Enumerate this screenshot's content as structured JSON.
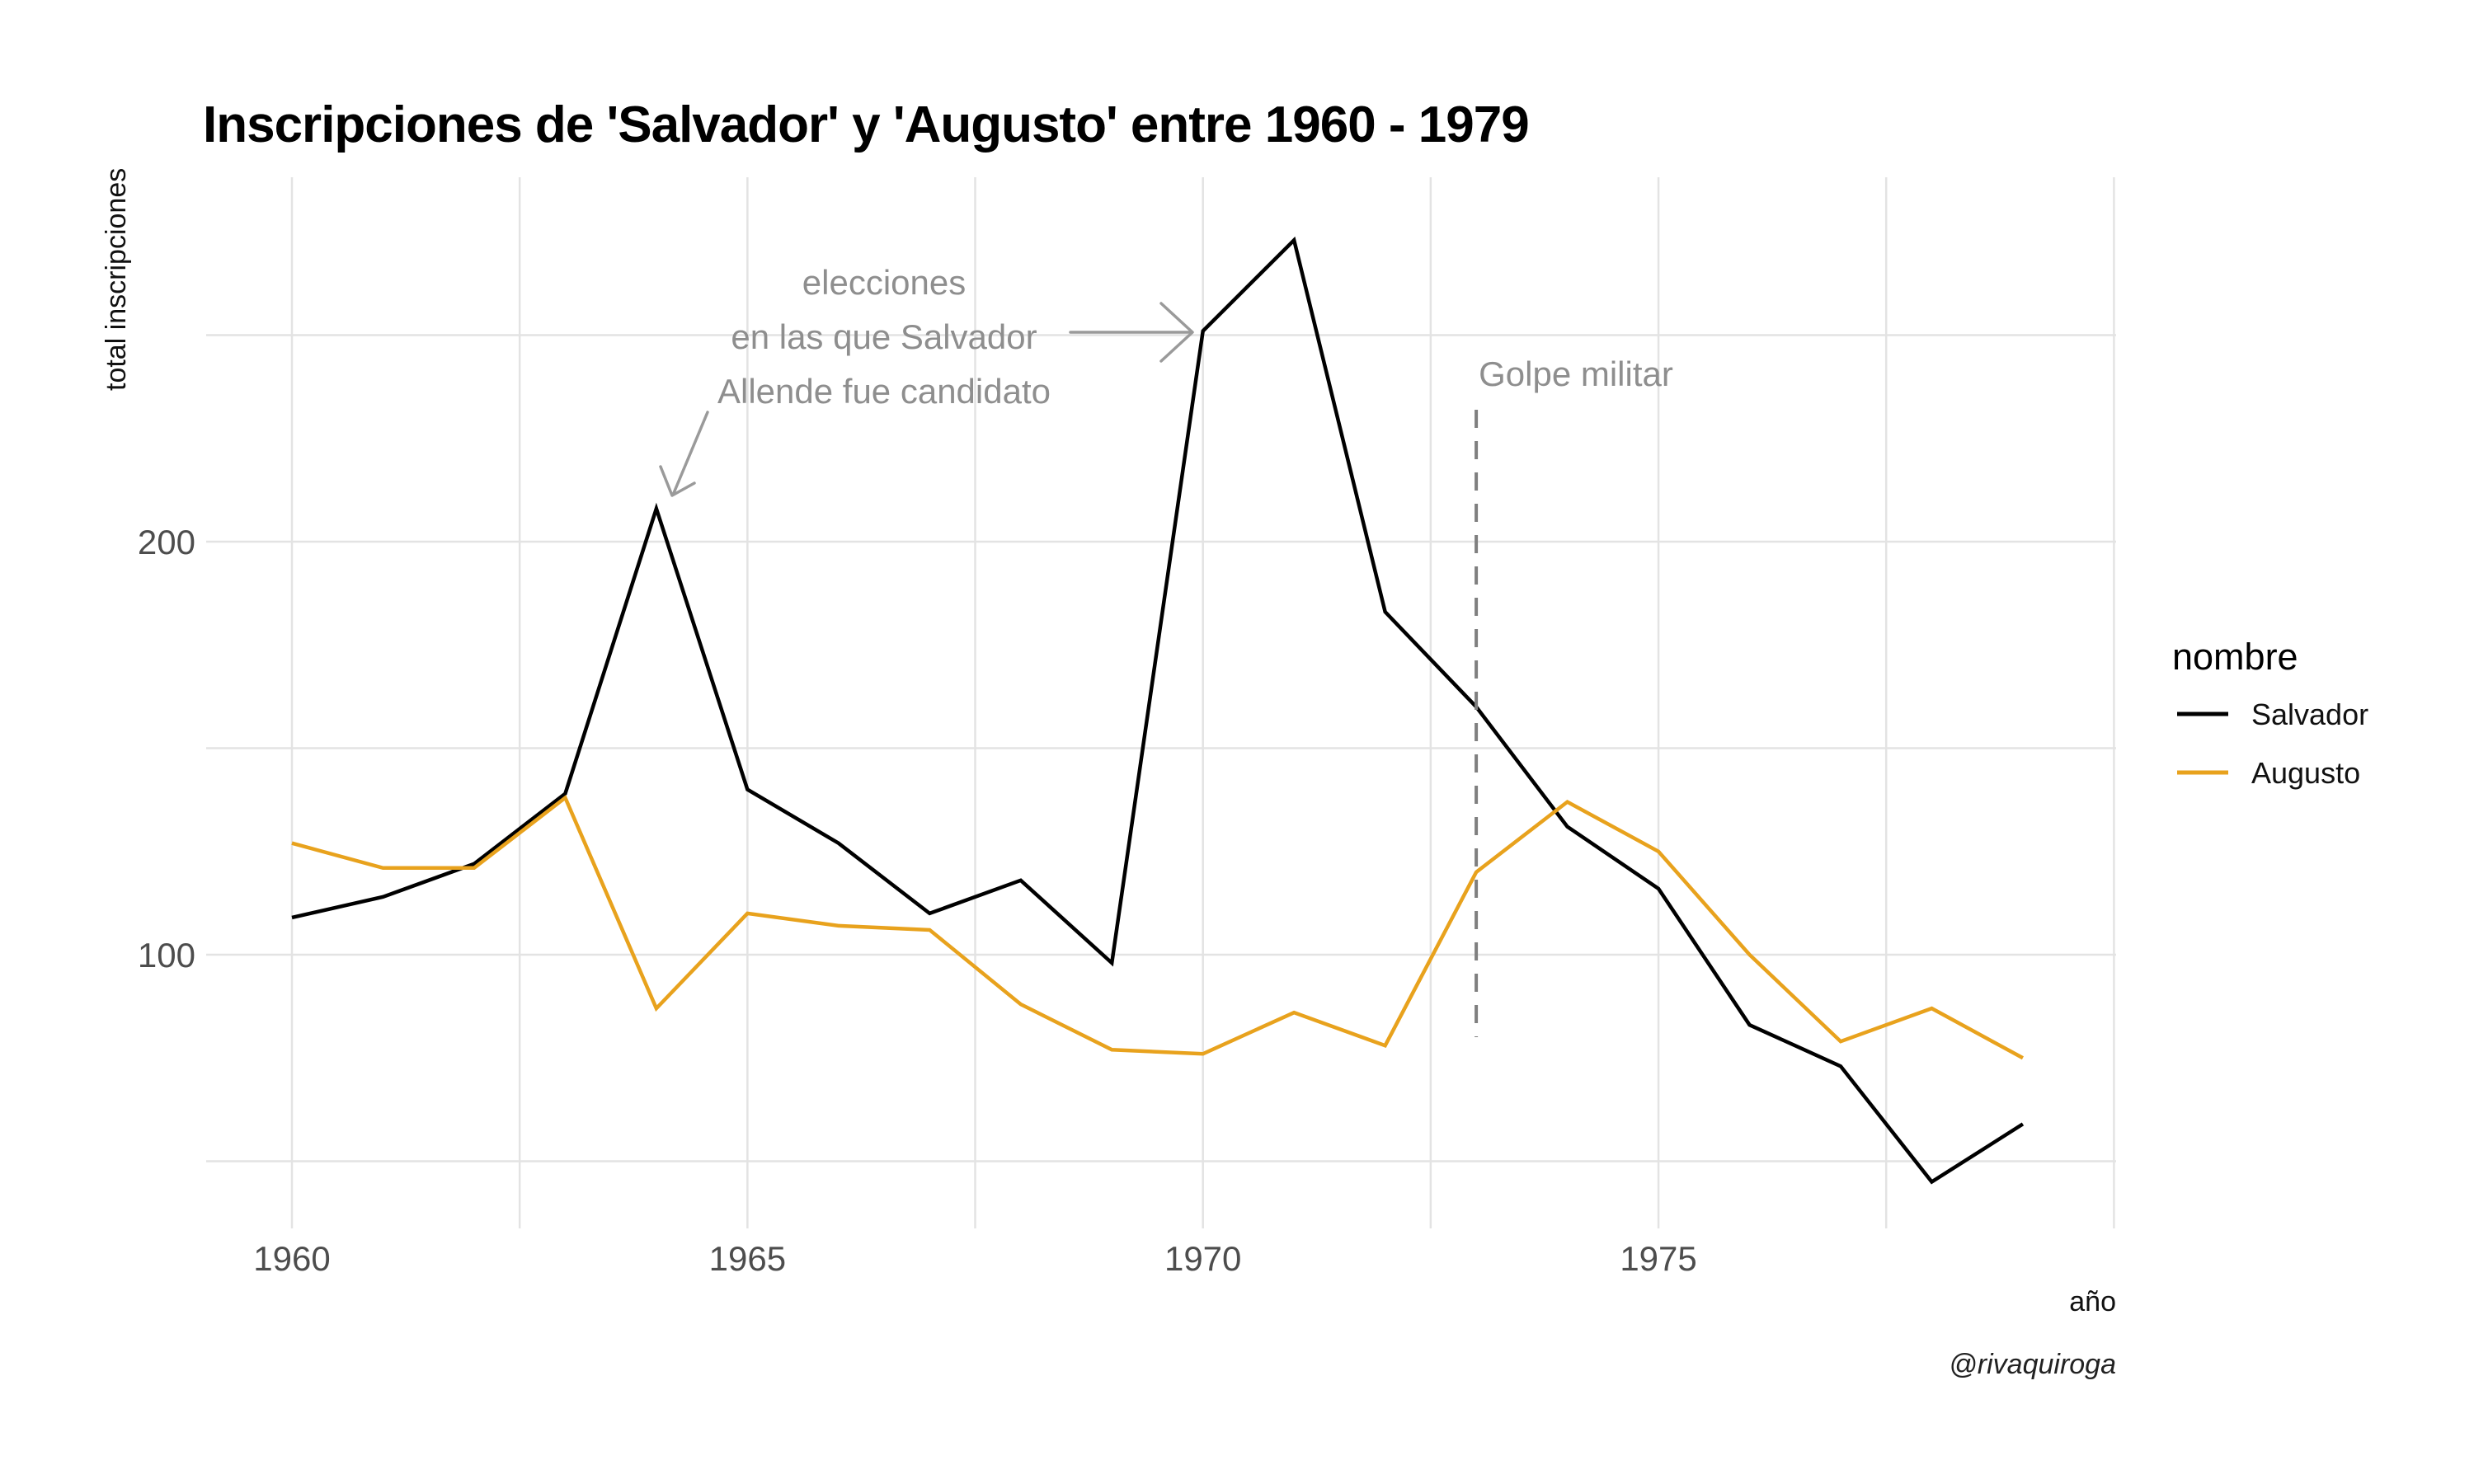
{
  "caption": "@rivaquiroga",
  "colors": {
    "background": "#ffffff",
    "grid": "#e3e3e3",
    "tick_text": "#4d4d4d",
    "annotation_gray": "#8e8e8e",
    "salvador": "#000000",
    "augusto": "#E8A21D"
  },
  "chart_data": {
    "type": "line",
    "title": "Inscripciones de 'Salvador' y 'Augusto' entre 1960 - 1979",
    "xlabel": "año",
    "ylabel": "total inscripciones",
    "x": [
      1960,
      1961,
      1962,
      1963,
      1964,
      1965,
      1966,
      1967,
      1968,
      1969,
      1970,
      1971,
      1972,
      1973,
      1974,
      1975,
      1976,
      1977,
      1978,
      1979
    ],
    "series": [
      {
        "name": "Salvador",
        "color": "#000000",
        "values": [
          109,
          114,
          122,
          139,
          208,
          140,
          127,
          110,
          118,
          98,
          251,
          273,
          183,
          160,
          131,
          116,
          83,
          73,
          45,
          59
        ]
      },
      {
        "name": "Augusto",
        "color": "#E8A21D",
        "values": [
          127,
          121,
          121,
          138,
          87,
          110,
          107,
          106,
          88,
          77,
          76,
          86,
          78,
          120,
          137,
          125,
          100,
          79,
          87,
          75
        ]
      }
    ],
    "x_ticks": [
      1960,
      1965,
      1970,
      1975
    ],
    "y_ticks": [
      200,
      100
    ],
    "x_gridlines": [
      1960,
      1962.5,
      1965,
      1967.5,
      1970,
      1972.5,
      1975,
      1977.5,
      1980
    ],
    "y_gridlines": [
      50,
      100,
      150,
      200,
      250
    ],
    "xlim": [
      1959.05,
      1979.95
    ],
    "ylim": [
      34,
      288
    ],
    "grid": "on",
    "legend": {
      "title": "nombre",
      "position": "right",
      "entries": [
        "Salvador",
        "Augusto"
      ]
    },
    "annotations": {
      "elections": {
        "lines": [
          "elecciones",
          "en las que Salvador",
          "Allende fue candidato"
        ],
        "color": "#8e8e8e",
        "target_years": [
          1964,
          1970
        ]
      },
      "golpe": {
        "label": "Golpe militar",
        "year": 1973,
        "color": "#8e8e8e",
        "style": "dashed"
      }
    }
  }
}
